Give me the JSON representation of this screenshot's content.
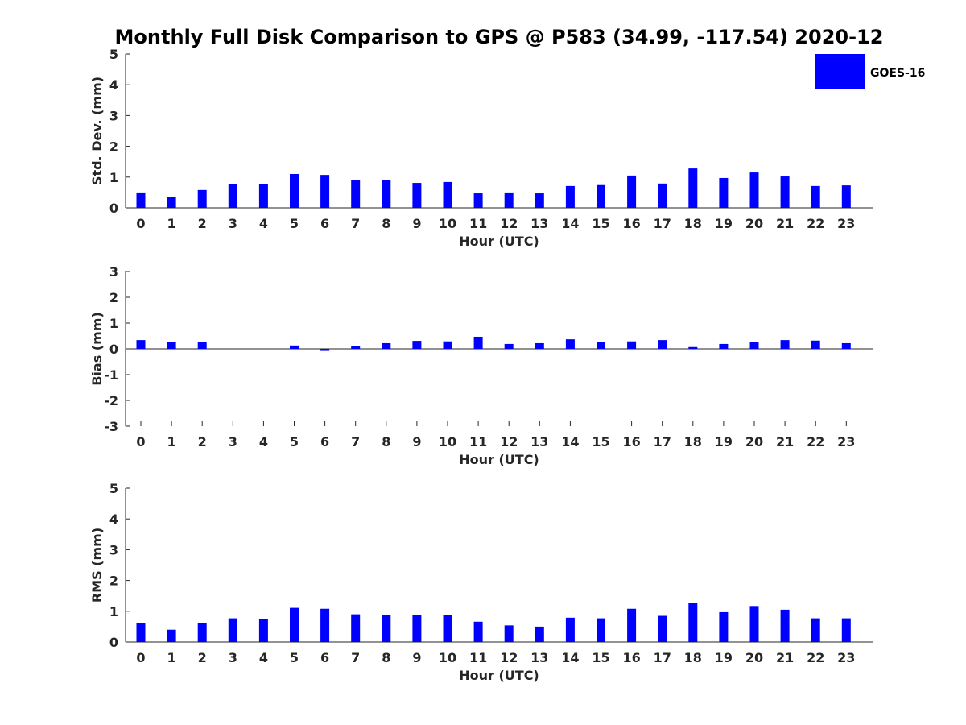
{
  "chart_data": {
    "title": "Monthly Full Disk Comparison to GPS @ P583 (34.99, -117.54) 2020-12",
    "legend": {
      "label": "GOES-16",
      "color": "#0000ff",
      "position": "top-right"
    },
    "type": "bar",
    "categories": [
      "0",
      "1",
      "2",
      "3",
      "4",
      "5",
      "6",
      "7",
      "8",
      "9",
      "10",
      "11",
      "12",
      "13",
      "14",
      "15",
      "16",
      "17",
      "18",
      "19",
      "20",
      "21",
      "22",
      "23"
    ],
    "panels": [
      {
        "ylabel": "Std. Dev. (mm)",
        "xlabel": "Hour (UTC)",
        "ylim": [
          0,
          5
        ],
        "yticks": [
          "0",
          "1",
          "2",
          "3",
          "4",
          "5"
        ],
        "values": [
          0.5,
          0.34,
          0.58,
          0.78,
          0.76,
          1.1,
          1.07,
          0.9,
          0.89,
          0.81,
          0.84,
          0.47,
          0.5,
          0.47,
          0.71,
          0.74,
          1.05,
          0.79,
          1.28,
          0.97,
          1.15,
          1.02,
          0.71,
          0.73
        ]
      },
      {
        "ylabel": "Bias (mm)",
        "xlabel": "Hour (UTC)",
        "ylim": [
          -3,
          3
        ],
        "yticks": [
          "-3",
          "-2",
          "-1",
          "0",
          "1",
          "2",
          "3"
        ],
        "values": [
          0.34,
          0.27,
          0.26,
          0.0,
          0.0,
          0.13,
          -0.08,
          0.11,
          0.22,
          0.31,
          0.29,
          0.47,
          0.19,
          0.22,
          0.37,
          0.27,
          0.29,
          0.34,
          0.07,
          0.19,
          0.27,
          0.34,
          0.32,
          0.22
        ]
      },
      {
        "ylabel": "RMS (mm)",
        "xlabel": "Hour (UTC)",
        "ylim": [
          0,
          5
        ],
        "yticks": [
          "0",
          "1",
          "2",
          "3",
          "4",
          "5"
        ],
        "values": [
          0.61,
          0.4,
          0.61,
          0.77,
          0.75,
          1.11,
          1.08,
          0.9,
          0.89,
          0.87,
          0.87,
          0.66,
          0.54,
          0.5,
          0.79,
          0.77,
          1.08,
          0.85,
          1.27,
          0.97,
          1.17,
          1.05,
          0.77,
          0.77
        ]
      }
    ]
  }
}
